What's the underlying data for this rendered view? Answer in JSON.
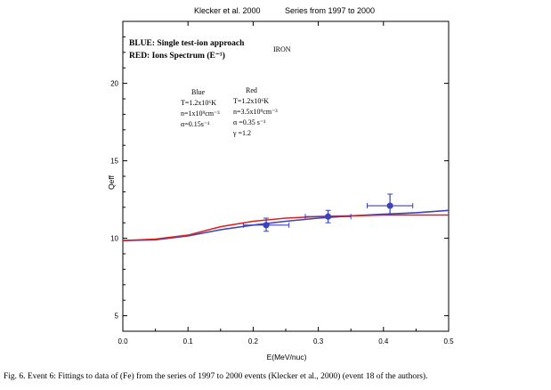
{
  "header": {
    "left": "Klecker et al. 2000",
    "right": "Series from 1997 to 2000"
  },
  "chart_data": {
    "type": "line",
    "title": "",
    "xlabel": "E(MeV/nuc)",
    "ylabel": "Qeff",
    "xlim": [
      0.0,
      0.5
    ],
    "ylim": [
      4.0,
      24.0
    ],
    "x_ticks": [
      "0.0",
      "0.1",
      "0.2",
      "0.3",
      "0.4",
      "0.5"
    ],
    "y_ticks": [
      "5",
      "10",
      "15",
      "20"
    ],
    "legend": {
      "line1": "BLUE:  Single test-ion approach",
      "line2": "RED: Ions Spectrum (E⁻¹)"
    },
    "element_label": "IRON",
    "blue_params": {
      "heading": "Blue",
      "lines": [
        "T=1.2x10⁶K",
        "n=1x10⁹cm⁻³",
        "α=0.15s⁻¹"
      ]
    },
    "red_params": {
      "heading": "Red",
      "lines": [
        "T=1.2x10⁶K",
        "n=3.5x10⁹cm⁻³",
        "α =0.35 s⁻¹",
        "γ =1.2"
      ]
    },
    "series": [
      {
        "name": "Blue (single test-ion)",
        "color": "#3b44b8",
        "x": [
          0.0,
          0.05,
          0.1,
          0.15,
          0.2,
          0.25,
          0.3,
          0.35,
          0.4,
          0.45,
          0.5
        ],
        "y": [
          9.85,
          9.9,
          10.15,
          10.55,
          10.85,
          11.1,
          11.3,
          11.45,
          11.55,
          11.65,
          11.8
        ]
      },
      {
        "name": "Red (ions spectrum)",
        "color": "#e02020",
        "x": [
          0.0,
          0.05,
          0.1,
          0.15,
          0.2,
          0.25,
          0.3,
          0.35,
          0.4,
          0.45,
          0.5
        ],
        "y": [
          9.85,
          9.95,
          10.2,
          10.75,
          11.1,
          11.3,
          11.4,
          11.45,
          11.5,
          11.5,
          11.5
        ]
      }
    ],
    "data_points": [
      {
        "x": 0.22,
        "y": 10.85,
        "xerr": [
          0.185,
          0.255
        ],
        "yerr": [
          10.45,
          11.3
        ],
        "color": "#3b44b8"
      },
      {
        "x": 0.315,
        "y": 11.4,
        "xerr": [
          0.28,
          0.35
        ],
        "yerr": [
          11.0,
          11.8
        ],
        "color": "#3b44b8"
      },
      {
        "x": 0.41,
        "y": 12.1,
        "xerr": [
          0.375,
          0.445
        ],
        "yerr": [
          11.5,
          12.85
        ],
        "color": "#3b44b8"
      }
    ]
  },
  "caption": "Fig. 6.  Event 6: Fittings to data of (Fe) from the series of 1997 to  2000 events (Klecker et al., 2000) (event 18 of the authors)."
}
